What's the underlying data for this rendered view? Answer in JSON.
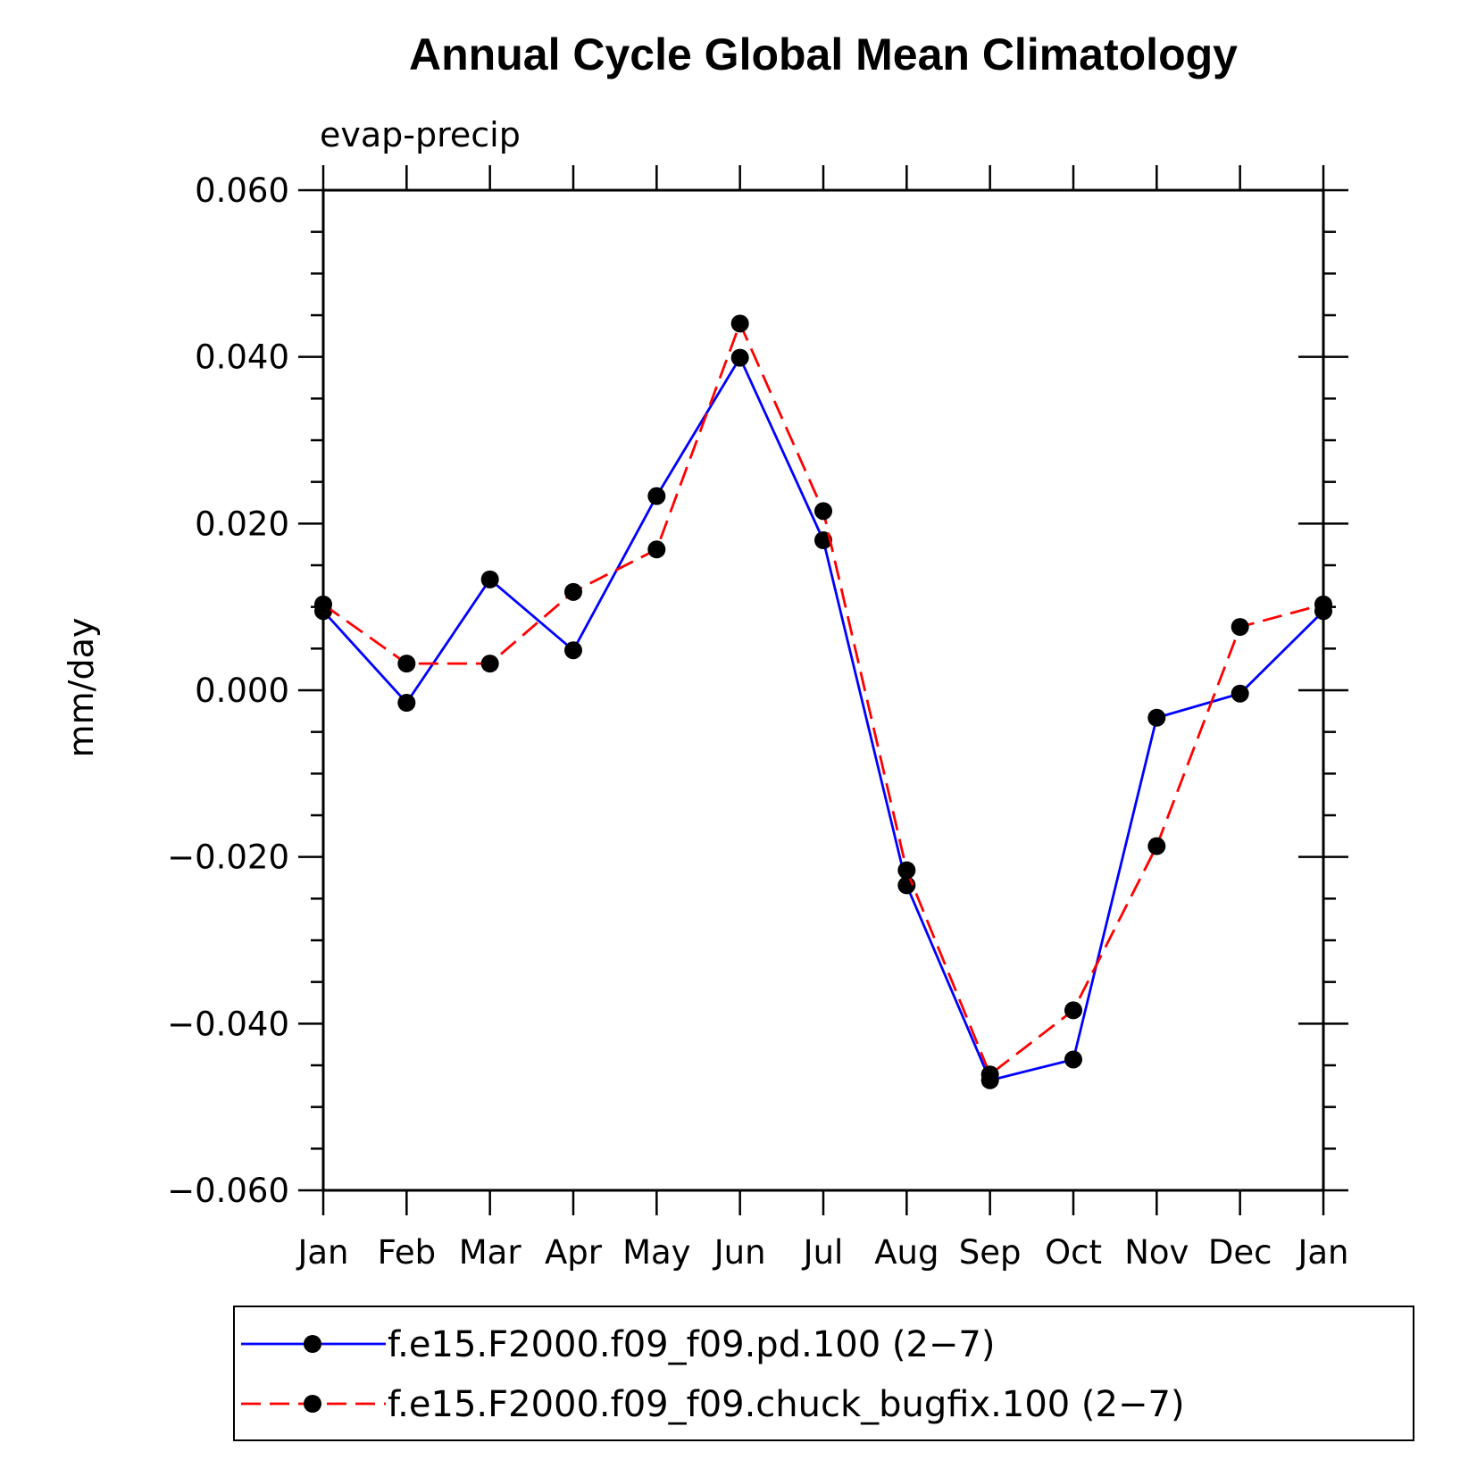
{
  "chart_data": {
    "type": "line",
    "title": "Annual Cycle Global Mean Climatology",
    "subtitle": "evap-precip",
    "xlabel": "",
    "ylabel": "mm/day",
    "categories": [
      "Jan",
      "Feb",
      "Mar",
      "Apr",
      "May",
      "Jun",
      "Jul",
      "Aug",
      "Sep",
      "Oct",
      "Nov",
      "Dec",
      "Jan"
    ],
    "ylim": [
      -0.06,
      0.06
    ],
    "yticks": [
      0.06,
      0.04,
      0.02,
      0.0,
      -0.02,
      -0.04,
      -0.06
    ],
    "ytick_labels": [
      "0.060",
      "0.040",
      "0.020",
      "0.000",
      "−0.020",
      "−0.040",
      "−0.060"
    ],
    "grid": false,
    "legend_position": "bottom",
    "series": [
      {
        "name": "f.e15.F2000.f09_f09.pd.100 (2−7)",
        "color": "#0000ff",
        "dash": "solid",
        "marker": "filled-circle",
        "values": [
          0.0095,
          -0.0015,
          0.0133,
          0.0048,
          0.0233,
          0.0399,
          0.018,
          -0.0234,
          -0.0468,
          -0.0443,
          -0.0033,
          -0.0004,
          0.0095
        ]
      },
      {
        "name": "f.e15.F2000.f09_f09.chuck_bugfix.100 (2−7)",
        "color": "#ff0000",
        "dash": "dashed",
        "marker": "filled-circle",
        "values": [
          0.0103,
          0.0032,
          0.0032,
          0.0118,
          0.0169,
          0.044,
          0.0215,
          -0.0216,
          -0.0461,
          -0.0384,
          -0.0187,
          0.0076,
          0.0103
        ]
      }
    ]
  }
}
